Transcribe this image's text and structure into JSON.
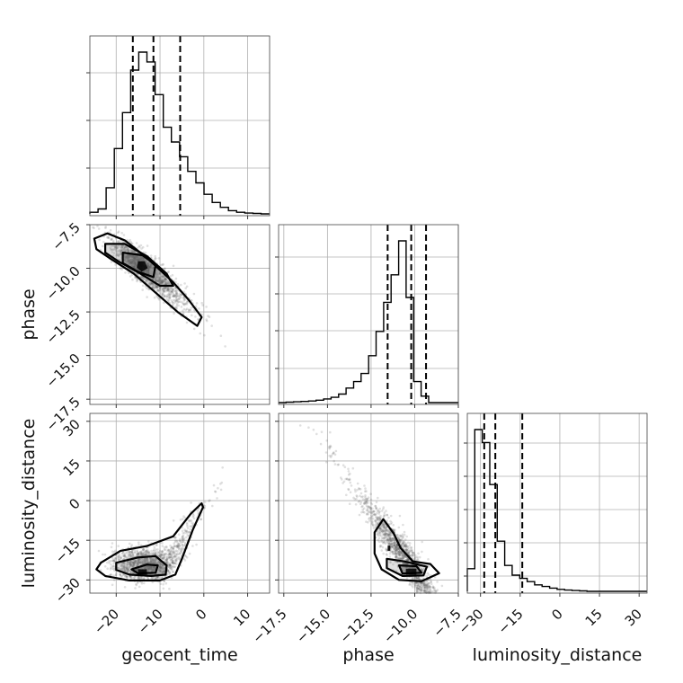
{
  "chart_data": {
    "type": "corner",
    "parameters": [
      "geocent_time",
      "phase",
      "luminosity_distance"
    ],
    "axis_labels": {
      "geocent_time": "geocent_time",
      "phase": "phase",
      "luminosity_distance": "luminosity_distance"
    },
    "ranges": {
      "geocent_time": [
        -26,
        15
      ],
      "phase": [
        -17.8,
        -7.5
      ],
      "luminosity_distance": [
        -35,
        33
      ]
    },
    "ticks": {
      "geocent_time": [
        {
          "v": -20,
          "label": "−20"
        },
        {
          "v": -10,
          "label": "−10"
        },
        {
          "v": 0,
          "label": "0"
        },
        {
          "v": 10,
          "label": "10"
        }
      ],
      "phase": [
        {
          "v": -17.5,
          "label": "−17.5"
        },
        {
          "v": -15.0,
          "label": "−15.0"
        },
        {
          "v": -12.5,
          "label": "−12.5"
        },
        {
          "v": -10.0,
          "label": "−10.0"
        },
        {
          "v": -7.5,
          "label": "−7.5"
        }
      ],
      "phase_y": [
        {
          "v": -7.5,
          "label": "−7.5"
        },
        {
          "v": -10.0,
          "label": "−10.0"
        },
        {
          "v": -12.5,
          "label": "−12.5"
        },
        {
          "v": -15.0,
          "label": "−15.0"
        },
        {
          "v": -17.5,
          "label": "−17.5"
        }
      ],
      "luminosity_distance": [
        {
          "v": -30,
          "label": "−30"
        },
        {
          "v": -15,
          "label": "−15"
        },
        {
          "v": 0,
          "label": "0"
        },
        {
          "v": 15,
          "label": "15"
        },
        {
          "v": 30,
          "label": "30"
        }
      ]
    },
    "quantiles": {
      "geocent_time": [
        -16.2,
        -11.5,
        -5.4
      ],
      "phase": [
        -11.55,
        -10.2,
        -9.35
      ],
      "luminosity_distance": [
        -28.6,
        -24.4,
        -14.2
      ]
    },
    "histograms": {
      "geocent_time": {
        "start": -26,
        "width": 1.86,
        "counts": [
          1,
          3,
          16,
          40,
          62,
          88,
          99,
          93,
          73,
          53,
          44,
          35,
          26,
          19,
          12,
          7,
          4,
          2,
          1,
          0.5,
          0.3,
          0
        ]
      },
      "phase": {
        "start": -17.8,
        "width": 0.43,
        "counts": [
          0,
          0.3,
          0.5,
          0.7,
          1,
          1.5,
          2.3,
          3.3,
          5.3,
          9,
          13,
          18,
          29,
          44,
          62,
          79,
          100,
          65,
          13,
          4,
          0,
          0,
          0,
          0
        ]
      },
      "luminosity_distance": {
        "start": -35,
        "width": 2.83,
        "counts": [
          14,
          100,
          92,
          66,
          31,
          16,
          10,
          8,
          6,
          4,
          3,
          2,
          1.2,
          0.8,
          0.5,
          0.3,
          0,
          0,
          0,
          0,
          0,
          0,
          0,
          0
        ]
      }
    },
    "grid": true
  }
}
